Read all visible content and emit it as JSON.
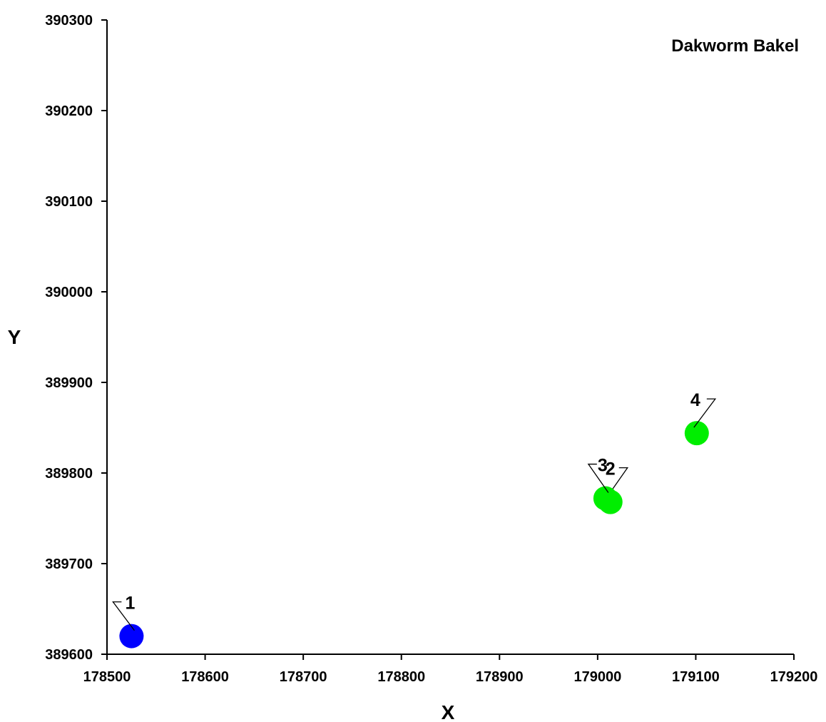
{
  "chart_data": {
    "type": "scatter",
    "title": "Dakworm Bakel",
    "xlabel": "X",
    "ylabel": "Y",
    "xlim": [
      178500,
      179200
    ],
    "ylim": [
      389600,
      390300
    ],
    "x_ticks": [
      178500,
      178600,
      178700,
      178800,
      178900,
      179000,
      179100,
      179200
    ],
    "y_ticks": [
      389600,
      389700,
      389800,
      389900,
      390000,
      390100,
      390200,
      390300
    ],
    "grid": false,
    "points": [
      {
        "label": "1",
        "x": 178525,
        "y": 389620,
        "color": "#0000ff"
      },
      {
        "label": "2",
        "x": 179013,
        "y": 389768,
        "color": "#00ee00"
      },
      {
        "label": "3",
        "x": 179008,
        "y": 389772,
        "color": "#00ee00"
      },
      {
        "label": "4",
        "x": 179101,
        "y": 389844,
        "color": "#00ee00"
      }
    ]
  }
}
